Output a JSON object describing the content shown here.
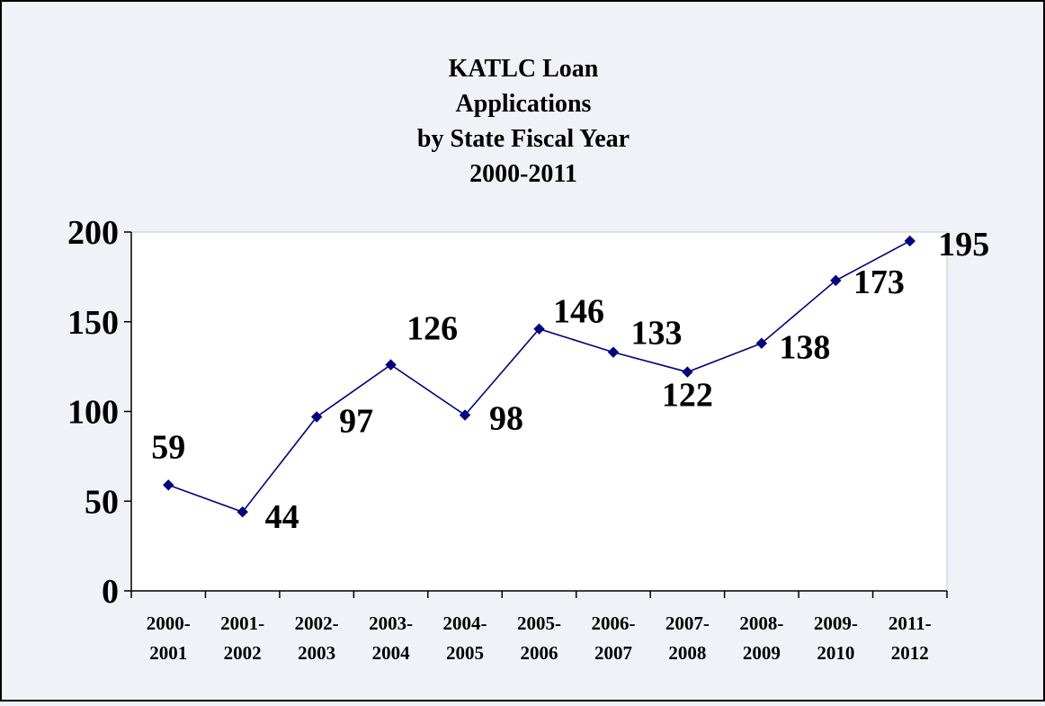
{
  "chart_data": {
    "type": "line",
    "title_lines": [
      "KATLC Loan",
      "Applications",
      "by State Fiscal Year",
      "2000-2011"
    ],
    "xlabel": "",
    "ylabel": "",
    "ylim": [
      0,
      200
    ],
    "yticks": [
      "0",
      "50",
      "100",
      "150",
      "200"
    ],
    "categories": [
      [
        "2000-",
        "2001"
      ],
      [
        "2001-",
        "2002"
      ],
      [
        "2002-",
        "2003"
      ],
      [
        "2003-",
        "2004"
      ],
      [
        "2004-",
        "2005"
      ],
      [
        "2005-",
        "2006"
      ],
      [
        "2006-",
        "2007"
      ],
      [
        "2007-",
        "2008"
      ],
      [
        "2008-",
        "2009"
      ],
      [
        "2009-",
        "2010"
      ],
      [
        "2011-",
        "2012"
      ]
    ],
    "series": [
      {
        "values": [
          59,
          44,
          97,
          126,
          98,
          146,
          133,
          122,
          138,
          173,
          195
        ],
        "data_labels": [
          "59",
          "44",
          "97",
          "126",
          "98",
          "146",
          "133",
          "122",
          "138",
          "173",
          "195"
        ],
        "color": "#000080"
      }
    ],
    "grid": false,
    "legend": "none",
    "plot_background": "#ffffff",
    "outer_background": "#f1f1f8"
  }
}
